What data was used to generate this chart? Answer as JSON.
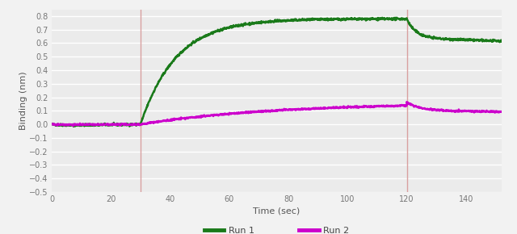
{
  "title": "",
  "xlabel": "Time (sec)",
  "ylabel": "Binding (nm)",
  "xlim": [
    0,
    152
  ],
  "ylim": [
    -0.5,
    0.85
  ],
  "yticks": [
    -0.5,
    -0.4,
    -0.3,
    -0.2,
    -0.1,
    0.0,
    0.1,
    0.2,
    0.3,
    0.4,
    0.5,
    0.6,
    0.7,
    0.8
  ],
  "xticks": [
    0,
    20,
    40,
    60,
    80,
    100,
    120,
    140
  ],
  "vline1_x": 30,
  "vline2_x": 120,
  "vline_color": "#d9a0a0",
  "bg_color": "#f2f2f2",
  "plot_bg_color": "#ebebeb",
  "grid_color": "#ffffff",
  "run1_color": "#1a7a1a",
  "run2_color": "#cc00cc",
  "legend_labels": [
    "Run 1",
    "Run 2"
  ]
}
